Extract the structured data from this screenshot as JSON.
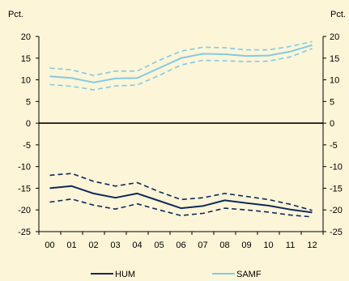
{
  "chart_data": {
    "type": "line",
    "title": "",
    "xlabel": "",
    "ylabel_left": "Pct.",
    "ylabel_right": "Pct.",
    "ylim": [
      -25,
      20
    ],
    "yticks": [
      20,
      15,
      10,
      5,
      0,
      -5,
      -10,
      -15,
      -20,
      -25
    ],
    "categories": [
      "00",
      "01",
      "02",
      "03",
      "04",
      "05",
      "06",
      "07",
      "08",
      "09",
      "10",
      "11",
      "12"
    ],
    "grid": false,
    "legend_position": "bottom",
    "series": [
      {
        "name": "SAMF",
        "role": "central",
        "style": "solid",
        "color": "#7fcbe6",
        "values": [
          10.8,
          10.4,
          9.4,
          10.3,
          10.4,
          12.7,
          15.0,
          16.0,
          15.9,
          15.5,
          15.6,
          16.5,
          18.0
        ]
      },
      {
        "name": "",
        "role": "upper band",
        "style": "dashed",
        "color": "#7fcbe6",
        "values": [
          12.7,
          12.3,
          11.0,
          12.0,
          12.0,
          14.5,
          16.6,
          17.5,
          17.4,
          16.9,
          16.9,
          17.7,
          18.8
        ]
      },
      {
        "name": "",
        "role": "lower band",
        "style": "dashed",
        "color": "#7fcbe6",
        "values": [
          8.9,
          8.5,
          7.7,
          8.6,
          8.8,
          11.0,
          13.4,
          14.5,
          14.4,
          14.2,
          14.3,
          15.3,
          17.2
        ]
      },
      {
        "name": "HUM",
        "role": "central",
        "style": "solid",
        "color": "#0e2a5a",
        "values": [
          -15.0,
          -14.5,
          -16.2,
          -17.2,
          -16.2,
          -17.9,
          -19.6,
          -19.1,
          -17.8,
          -18.4,
          -19.0,
          -19.9,
          -20.6
        ]
      },
      {
        "name": "",
        "role": "upper band",
        "style": "dashed",
        "color": "#0e2a5a",
        "values": [
          -12.0,
          -11.6,
          -13.4,
          -14.5,
          -13.7,
          -15.8,
          -17.6,
          -17.2,
          -16.2,
          -16.9,
          -17.6,
          -18.7,
          -20.1
        ]
      },
      {
        "name": "",
        "role": "lower band",
        "style": "dashed",
        "color": "#0e2a5a",
        "values": [
          -18.2,
          -17.5,
          -18.9,
          -19.8,
          -18.6,
          -20.0,
          -21.3,
          -20.8,
          -19.6,
          -20.0,
          -20.5,
          -21.2,
          -21.6
        ]
      }
    ],
    "legend": [
      {
        "label": "HUM",
        "color": "#0e2a5a"
      },
      {
        "label": "SAMF",
        "color": "#7fcbe6"
      }
    ]
  }
}
